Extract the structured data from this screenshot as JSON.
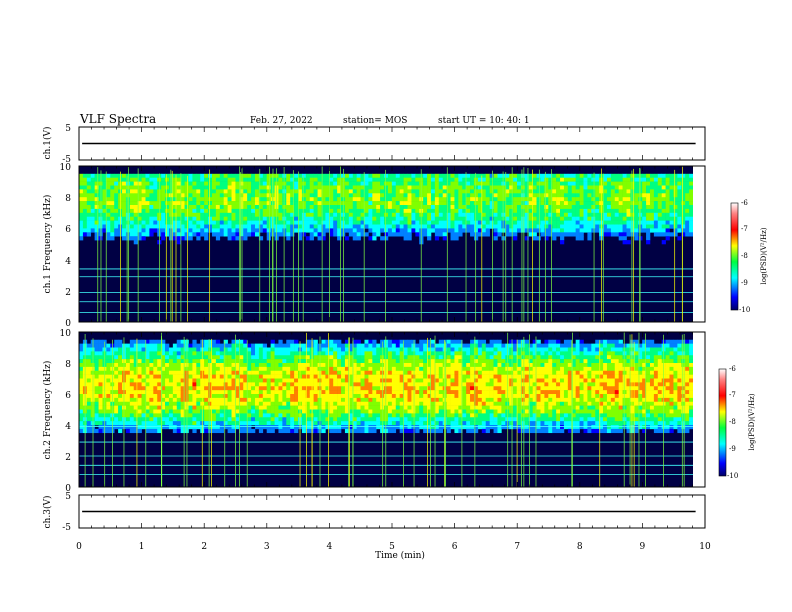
{
  "header": {
    "title": "VLF Spectra",
    "date": "Feb. 27, 2022",
    "station": "station= MOS",
    "start": "start  UT =   10: 40: 1"
  },
  "colors": {
    "colormap": [
      "#000000",
      "#000066",
      "#0000ff",
      "#0080ff",
      "#00ffff",
      "#00ff80",
      "#80ff00",
      "#ffff00",
      "#ff8000",
      "#ff0000",
      "#ffb0b0",
      "#ffffff"
    ]
  },
  "chart_data": [
    {
      "type": "line",
      "panel": "ch1-waveform",
      "ylabel": "ch.1(V)",
      "ylim": [
        -5,
        5
      ],
      "xlim": [
        0,
        10
      ],
      "yticks": [
        "5",
        "-5"
      ],
      "series": [
        {
          "x": [
            0.05,
            9.85
          ],
          "values": [
            0,
            0
          ]
        }
      ]
    },
    {
      "type": "heatmap",
      "panel": "ch1-spectrogram",
      "ylabel": "ch.1 Frequency (kHz)",
      "ylim": [
        0,
        10
      ],
      "xlim": [
        0,
        10
      ],
      "yticks": [
        "0",
        "2",
        "4",
        "6",
        "8",
        "10"
      ],
      "band_center_khz": 8,
      "peak_log_psd": -7.5,
      "colorbar": {
        "label": "log(PSD)(V²/Hz)",
        "range": [
          -10,
          -6
        ],
        "ticks": [
          "-6",
          "-7",
          "-8",
          "-9",
          "-10"
        ]
      }
    },
    {
      "type": "heatmap",
      "panel": "ch2-spectrogram",
      "ylabel": "ch.2 Frequency (kHz)",
      "ylim": [
        0,
        10
      ],
      "xlim": [
        0,
        10
      ],
      "yticks": [
        "0",
        "2",
        "4",
        "6",
        "8",
        "10"
      ],
      "band_center_khz": 6.5,
      "peak_log_psd": -6.8,
      "colorbar": {
        "label": "log(PSD)(V²/Hz)",
        "range": [
          -10,
          -6
        ],
        "ticks": [
          "-6",
          "-7",
          "-8",
          "-9",
          "-10"
        ]
      }
    },
    {
      "type": "line",
      "panel": "ch3-waveform",
      "ylabel": "ch.3(V)",
      "ylim": [
        -5,
        5
      ],
      "xlim": [
        0,
        10
      ],
      "yticks": [
        "5",
        "-5"
      ],
      "series": [
        {
          "x": [
            0.05,
            9.85
          ],
          "values": [
            0,
            0
          ]
        }
      ]
    }
  ],
  "xaxis": {
    "label": "Time  (min)",
    "ticks": [
      "0",
      "1",
      "2",
      "3",
      "4",
      "5",
      "6",
      "7",
      "8",
      "9",
      "10"
    ]
  }
}
